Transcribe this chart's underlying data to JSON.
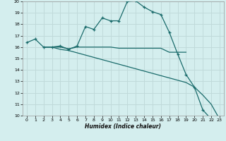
{
  "xlabel": "Humidex (Indice chaleur)",
  "bg_color": "#d4eeee",
  "grid_color": "#c0dada",
  "line_color": "#1a6b6b",
  "xlim": [
    -0.5,
    23.5
  ],
  "ylim": [
    10,
    20
  ],
  "xticks": [
    0,
    1,
    2,
    3,
    4,
    5,
    6,
    7,
    8,
    9,
    10,
    11,
    12,
    13,
    14,
    15,
    16,
    17,
    18,
    19,
    20,
    21,
    22,
    23
  ],
  "yticks": [
    10,
    11,
    12,
    13,
    14,
    15,
    16,
    17,
    18,
    19,
    20
  ],
  "line1_x": [
    0,
    1,
    2,
    3,
    4,
    5,
    6,
    7,
    8,
    9,
    10,
    11,
    12,
    13,
    14,
    15,
    16,
    17,
    18,
    19,
    20,
    21,
    22,
    23
  ],
  "line1_y": [
    16.4,
    16.7,
    16.0,
    16.0,
    16.1,
    15.8,
    16.1,
    17.8,
    17.55,
    18.55,
    18.3,
    18.3,
    20.0,
    20.05,
    19.5,
    19.1,
    18.85,
    17.3,
    15.4,
    13.6,
    12.5,
    10.5,
    9.7,
    9.7
  ],
  "line2_x": [
    2,
    3,
    4,
    5,
    6,
    7,
    8,
    9,
    10,
    11,
    12,
    13,
    14,
    15,
    16,
    17,
    18,
    19
  ],
  "line2_y": [
    16.0,
    16.0,
    16.0,
    15.85,
    16.0,
    16.0,
    16.0,
    16.0,
    16.0,
    15.9,
    15.9,
    15.9,
    15.9,
    15.9,
    15.9,
    15.55,
    15.55,
    15.55
  ],
  "line3_x": [
    2,
    3,
    4,
    5,
    6,
    7,
    8,
    9,
    10,
    11,
    12,
    13,
    14,
    15,
    16,
    17,
    18,
    19,
    20,
    21,
    22,
    23
  ],
  "line3_y": [
    16.0,
    16.0,
    15.8,
    15.7,
    15.5,
    15.3,
    15.1,
    14.9,
    14.7,
    14.5,
    14.3,
    14.1,
    13.9,
    13.7,
    13.5,
    13.3,
    13.1,
    12.9,
    12.5,
    11.8,
    11.0,
    9.7
  ]
}
